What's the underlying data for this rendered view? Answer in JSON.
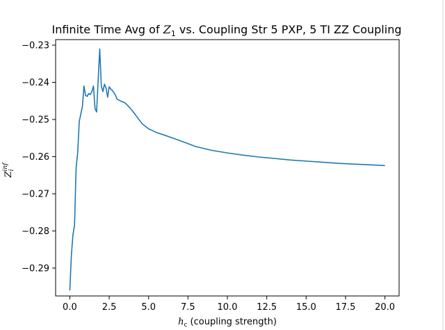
{
  "chart_data": {
    "type": "line",
    "title_prefix": "Infinite Time Avg of ",
    "title_math_var": "Z",
    "title_math_sub": "1",
    "title_suffix": " vs. Coupling Str 5 PXP, 5 TI ZZ Coupling",
    "xlabel_var": "h",
    "xlabel_sub": "c",
    "xlabel_rest": " (coupling strength)",
    "ylabel_var": "Z",
    "ylabel_sub": "i",
    "ylabel_sup": "inf",
    "xlim": [
      -0.9,
      20.9
    ],
    "ylim": [
      -0.2975,
      -0.2285
    ],
    "xticks": [
      0.0,
      2.5,
      5.0,
      7.5,
      10.0,
      12.5,
      15.0,
      17.5,
      20.0
    ],
    "xtick_labels": [
      "0.0",
      "2.5",
      "5.0",
      "7.5",
      "10.0",
      "12.5",
      "15.0",
      "17.5",
      "20.0"
    ],
    "yticks": [
      -0.29,
      -0.28,
      -0.27,
      -0.26,
      -0.25,
      -0.24,
      -0.23
    ],
    "ytick_labels": [
      "−0.29",
      "−0.28",
      "−0.27",
      "−0.26",
      "−0.25",
      "−0.24",
      "−0.23"
    ],
    "grid": false,
    "line_color": "#1f77b4",
    "series": [
      {
        "x": [
          0.0,
          0.1,
          0.2,
          0.3,
          0.4,
          0.5,
          0.6,
          0.7,
          0.8,
          0.9,
          1.0,
          1.1,
          1.2,
          1.3,
          1.4,
          1.5,
          1.6,
          1.7,
          1.8,
          1.9,
          2.0,
          2.1,
          2.2,
          2.3,
          2.4,
          2.5,
          2.6,
          2.7,
          2.8,
          2.9,
          3.0,
          3.2,
          3.5,
          3.8,
          4.0,
          4.3,
          4.6,
          5.0,
          5.5,
          6.0,
          7.0,
          8.0,
          9.0,
          10.0,
          11.0,
          12.0,
          13.0,
          14.0,
          15.0,
          16.0,
          17.0,
          18.0,
          19.0,
          20.0
        ],
        "y": [
          -0.296,
          -0.2865,
          -0.281,
          -0.2785,
          -0.263,
          -0.259,
          -0.2505,
          -0.2485,
          -0.2465,
          -0.241,
          -0.2435,
          -0.2438,
          -0.243,
          -0.2433,
          -0.2425,
          -0.241,
          -0.247,
          -0.248,
          -0.2395,
          -0.231,
          -0.241,
          -0.2425,
          -0.2405,
          -0.2415,
          -0.244,
          -0.2412,
          -0.2418,
          -0.2422,
          -0.2428,
          -0.2435,
          -0.2445,
          -0.245,
          -0.2455,
          -0.2468,
          -0.2478,
          -0.2495,
          -0.2512,
          -0.2525,
          -0.2535,
          -0.2542,
          -0.2557,
          -0.2573,
          -0.2583,
          -0.259,
          -0.2596,
          -0.2601,
          -0.2605,
          -0.2609,
          -0.2612,
          -0.2615,
          -0.2618,
          -0.262,
          -0.2622,
          -0.2624
        ]
      }
    ]
  }
}
